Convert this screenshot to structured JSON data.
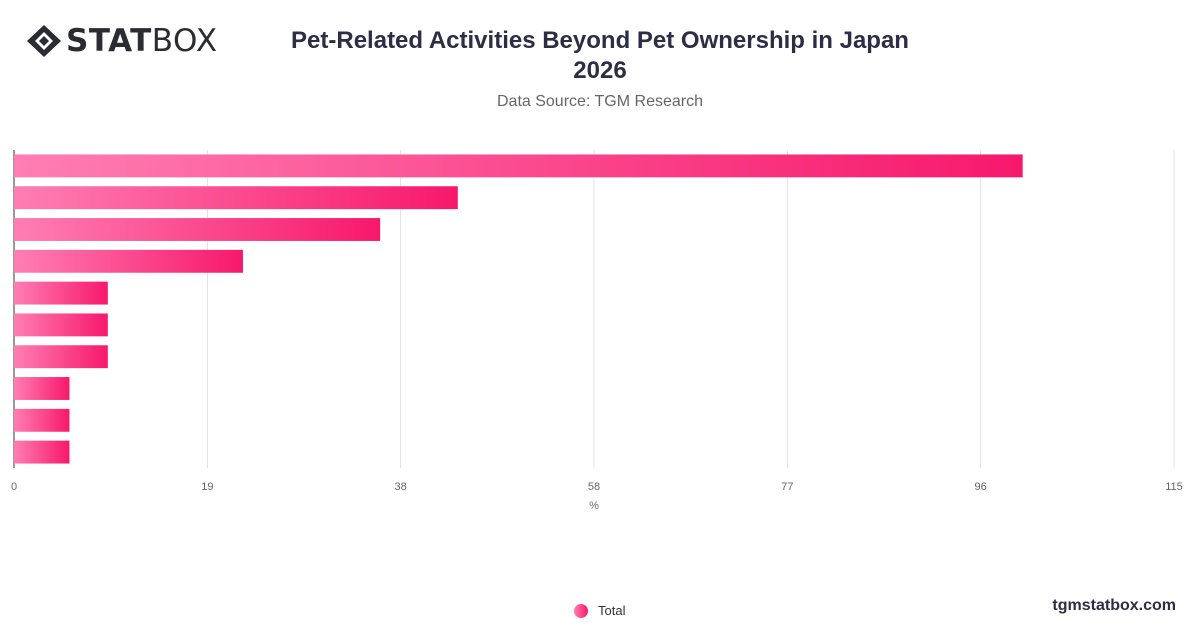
{
  "brand": {
    "logo_bold": "STAT",
    "logo_light": "BOX",
    "footer_url": "tgmstatbox.com"
  },
  "colors": {
    "bar_start": "#ff7eb3",
    "bar_end": "#f7186c",
    "grid": "#e0e0e0",
    "text": "#2d2d45"
  },
  "chart_data": {
    "type": "bar",
    "orientation": "horizontal",
    "title": "Pet-Related Activities Beyond Pet Ownership in Japan",
    "title_year": "2026",
    "subtitle": "Data Source: TGM Research",
    "xlabel": "%",
    "ylabel": "",
    "xlim": [
      0,
      115
    ],
    "x_ticks": [
      "0",
      "19",
      "38",
      "58",
      "77",
      "96",
      "115"
    ],
    "x_tick_values": [
      0,
      19.17,
      38.33,
      57.5,
      76.67,
      95.83,
      115
    ],
    "grid": true,
    "legend_position": "bottom",
    "series": [
      {
        "name": "Total",
        "values": [
          100,
          44,
          36.3,
          22.7,
          9.3,
          9.3,
          9.3,
          5.5,
          5.5,
          5.5
        ]
      }
    ]
  }
}
